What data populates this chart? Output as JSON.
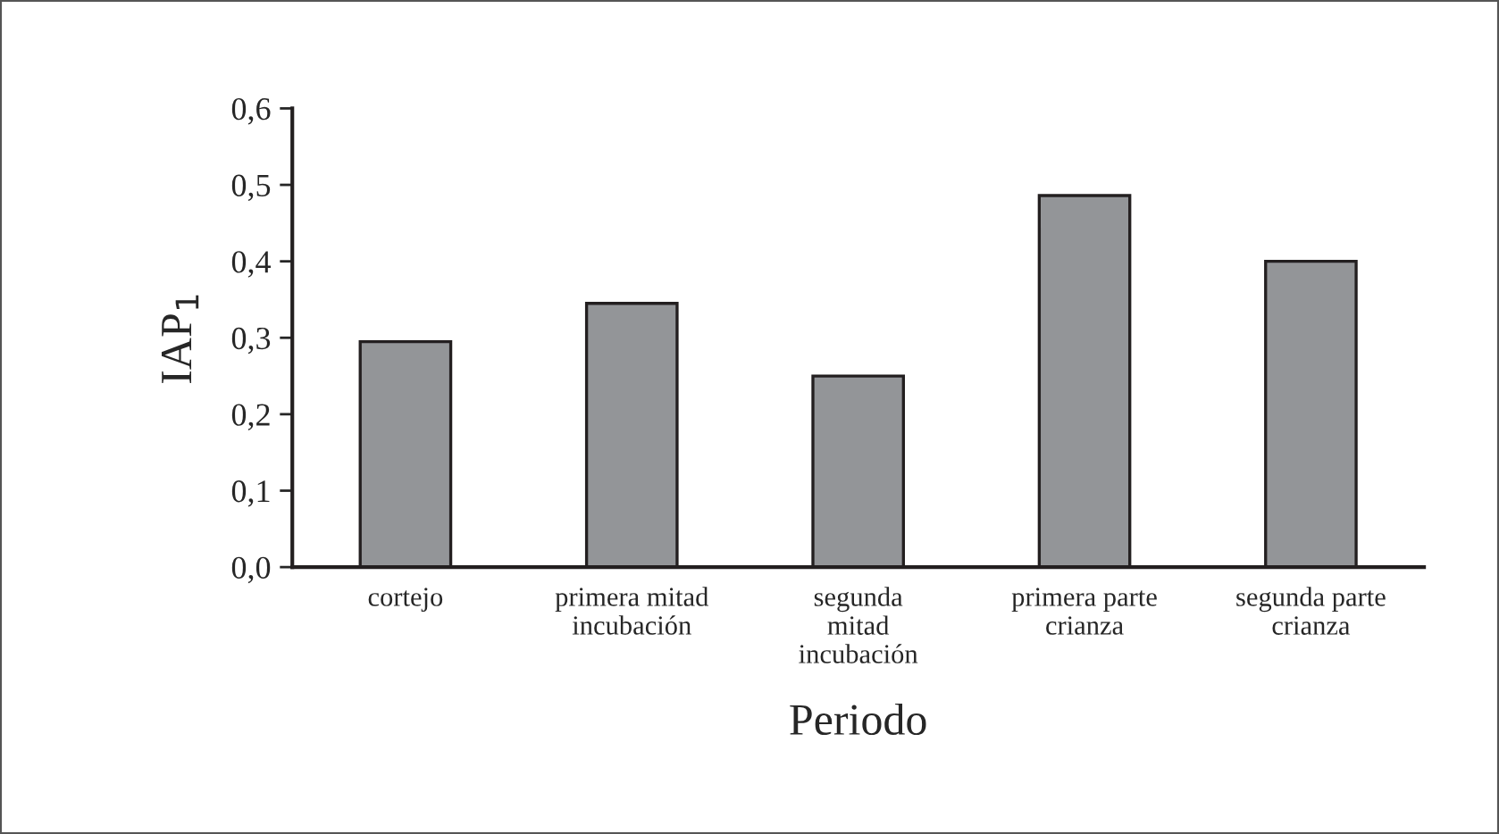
{
  "chart_data": {
    "type": "bar",
    "xlabel": "Periodo",
    "ylabel": "IAP$_{1}$",
    "categories": [
      "cortejo",
      "primera mitad\nincubación",
      "segunda\nmitad\nincubación",
      "primera parte\ncrianza",
      "segunda parte\ncrianza"
    ],
    "values": [
      0.295,
      0.345,
      0.25,
      0.486,
      0.4
    ],
    "color": "#939598",
    "ylim": [
      0,
      0.6
    ],
    "yticks": [
      {
        "value": 0,
        "label": "0,0"
      },
      {
        "value": 0.1,
        "label": "0,1"
      },
      {
        "value": 0.2,
        "label": "0,2"
      },
      {
        "value": 0.3,
        "label": "0,3"
      },
      {
        "value": 0.4,
        "label": "0,4"
      },
      {
        "value": 0.5,
        "label": "0,5"
      },
      {
        "value": 0.6,
        "label": "0,6"
      }
    ],
    "grid": false,
    "legend": false
  }
}
